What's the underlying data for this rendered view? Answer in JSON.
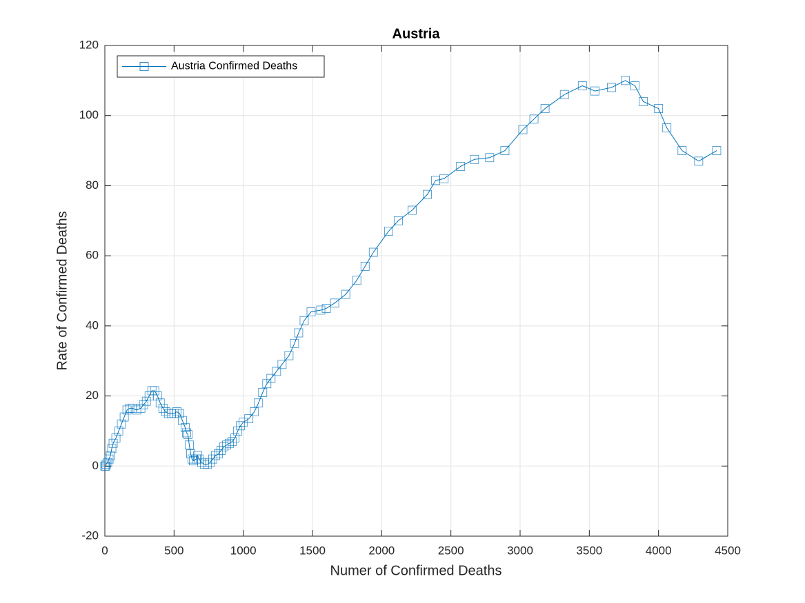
{
  "chart_data": {
    "type": "line",
    "title": "Austria",
    "x_label": "Numer of Confirmed Deaths",
    "y_label": "Rate of Confirmed Deaths",
    "x": [
      0,
      5,
      10,
      20,
      30,
      40,
      50,
      60,
      80,
      100,
      120,
      140,
      160,
      180,
      200,
      230,
      260,
      280,
      300,
      320,
      340,
      360,
      380,
      400,
      420,
      440,
      460,
      480,
      500,
      520,
      540,
      560,
      580,
      590,
      600,
      610,
      620,
      630,
      640,
      660,
      670,
      680,
      700,
      720,
      740,
      760,
      780,
      800,
      820,
      840,
      860,
      880,
      900,
      920,
      940,
      960,
      980,
      1000,
      1040,
      1080,
      1110,
      1140,
      1170,
      1200,
      1240,
      1280,
      1330,
      1370,
      1400,
      1440,
      1490,
      1560,
      1600,
      1660,
      1740,
      1820,
      1880,
      1940,
      2050,
      2120,
      2220,
      2330,
      2390,
      2450,
      2570,
      2670,
      2780,
      2890,
      3020,
      3100,
      3180,
      3320,
      3450,
      3540,
      3660,
      3760,
      3830,
      3890,
      4000,
      4060,
      4170,
      4290,
      4420
    ],
    "series": [
      {
        "name": "Austria Confirmed Deaths",
        "color": "#0072bd",
        "values": [
          0,
          0,
          0.5,
          1,
          2,
          3,
          5,
          6.5,
          8,
          10,
          12,
          14,
          16,
          16.5,
          16.5,
          16,
          16.5,
          17.5,
          18.5,
          20,
          21.5,
          21.5,
          20,
          18,
          16.5,
          15.5,
          15,
          15,
          15,
          15.5,
          15,
          13,
          11,
          9.5,
          9,
          6,
          3.5,
          2,
          1.5,
          2,
          3,
          2,
          1,
          0.5,
          0.5,
          1,
          2,
          3,
          3.5,
          4.5,
          5.5,
          6,
          6.5,
          7,
          8,
          10,
          11.5,
          12.5,
          13.5,
          15.5,
          18,
          21,
          23.5,
          25,
          27,
          29,
          31.5,
          35,
          38,
          41.5,
          44,
          44.5,
          45,
          46.5,
          49,
          53,
          57,
          61,
          67,
          70,
          73,
          77.5,
          81.5,
          82,
          85.5,
          87.5,
          88,
          90,
          96,
          99,
          102,
          106,
          108.5,
          107,
          108,
          110,
          108.5,
          104,
          102,
          96.5,
          90,
          87,
          90
        ]
      }
    ],
    "xlim": [
      0,
      4500
    ],
    "xticks": [
      0,
      500,
      1000,
      1500,
      2000,
      2500,
      3000,
      3500,
      4000,
      4500
    ],
    "ylim": [
      -20,
      120
    ],
    "yticks": [
      -20,
      0,
      20,
      40,
      60,
      80,
      100,
      120
    ],
    "grid": true,
    "legend": "upper left"
  }
}
